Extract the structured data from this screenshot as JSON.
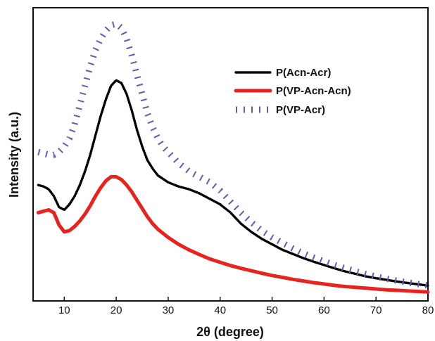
{
  "chart_data": {
    "type": "line",
    "title": "",
    "xlabel": "2θ (degree)",
    "ylabel": "Intensity (a.u.)",
    "xlim": [
      4,
      80
    ],
    "ylim": [
      0,
      100
    ],
    "x_ticks": [
      "10",
      "20",
      "30",
      "40",
      "50",
      "60",
      "70",
      "80"
    ],
    "y_ticks_shown": false,
    "grid": false,
    "legend_position": "top-right",
    "series": [
      {
        "name": "P(Acn-Acr)",
        "color": "#000000",
        "style": "dotted",
        "x": [
          5,
          6,
          7,
          8,
          9,
          10,
          11,
          12,
          13,
          14,
          15,
          16,
          17,
          18,
          19,
          20,
          21,
          22,
          23,
          24,
          25,
          26,
          27,
          28,
          30,
          32,
          34,
          36,
          38,
          40,
          42,
          44,
          46,
          48,
          50,
          52,
          54,
          56,
          58,
          60,
          62,
          64,
          66,
          68,
          70,
          72,
          74,
          76,
          78,
          80
        ],
        "y": [
          40,
          39.5,
          38.5,
          36,
          32,
          31,
          33,
          36,
          40,
          45,
          51,
          58,
          65,
          71,
          76,
          78,
          77,
          73,
          67,
          60,
          54,
          49,
          46,
          43.5,
          41,
          39.5,
          38.5,
          37,
          35,
          33,
          30,
          26,
          23,
          20.5,
          18.5,
          16.5,
          15,
          13.5,
          12.2,
          11,
          9.8,
          8.7,
          7.8,
          6.9,
          6.2,
          5.6,
          5,
          4.5,
          4,
          3.5
        ]
      },
      {
        "name": "P(VP-Acn-Acn)",
        "color": "#e8221d",
        "style": "solid",
        "x": [
          5,
          6,
          7,
          8,
          9,
          10,
          11,
          12,
          13,
          14,
          15,
          16,
          17,
          18,
          19,
          20,
          21,
          22,
          23,
          24,
          25,
          26,
          27,
          28,
          30,
          32,
          34,
          36,
          38,
          40,
          42,
          44,
          46,
          48,
          50,
          52,
          54,
          56,
          58,
          60,
          62,
          64,
          66,
          68,
          70,
          72,
          74,
          76,
          78,
          80
        ],
        "y": [
          30,
          30.5,
          31,
          30,
          25.5,
          23,
          23.5,
          25,
          27,
          29.5,
          32.5,
          36,
          39,
          41.5,
          43,
          43,
          42,
          40,
          37.5,
          34.5,
          31.5,
          28.5,
          26,
          24,
          21,
          18.5,
          16.5,
          14.8,
          13.2,
          12,
          10.8,
          9.8,
          8.9,
          8,
          7.2,
          6.5,
          5.8,
          5.2,
          4.6,
          4.1,
          3.6,
          3.2,
          2.9,
          2.6,
          2.3,
          2,
          1.8,
          1.6,
          1.4,
          1.2
        ]
      },
      {
        "name": "P(VP-Acr)",
        "color": "#5a5fb0",
        "style": "dash-dot",
        "x": [
          5,
          6,
          7,
          8,
          9,
          10,
          11,
          12,
          13,
          14,
          15,
          16,
          17,
          18,
          19,
          20,
          21,
          22,
          23,
          24,
          25,
          26,
          27,
          28,
          29,
          30,
          32,
          34,
          36,
          38,
          40,
          42,
          44,
          46,
          48,
          50,
          52,
          54,
          56,
          58,
          60,
          62,
          64,
          66,
          68,
          70,
          72,
          74,
          76,
          78,
          80
        ],
        "y": [
          52,
          51.5,
          51,
          51,
          52,
          54,
          57,
          62,
          69,
          76,
          83,
          89,
          93,
          96,
          98,
          98.5,
          97,
          93,
          87,
          80,
          73,
          66,
          61,
          57,
          54,
          52,
          48,
          45,
          43,
          41,
          38,
          34,
          30,
          26.5,
          23.5,
          21,
          19,
          17,
          15.2,
          13.7,
          12.3,
          11,
          9.8,
          8.7,
          7.7,
          6.8,
          6,
          5.3,
          4.7,
          4.1,
          3.6
        ]
      }
    ]
  }
}
